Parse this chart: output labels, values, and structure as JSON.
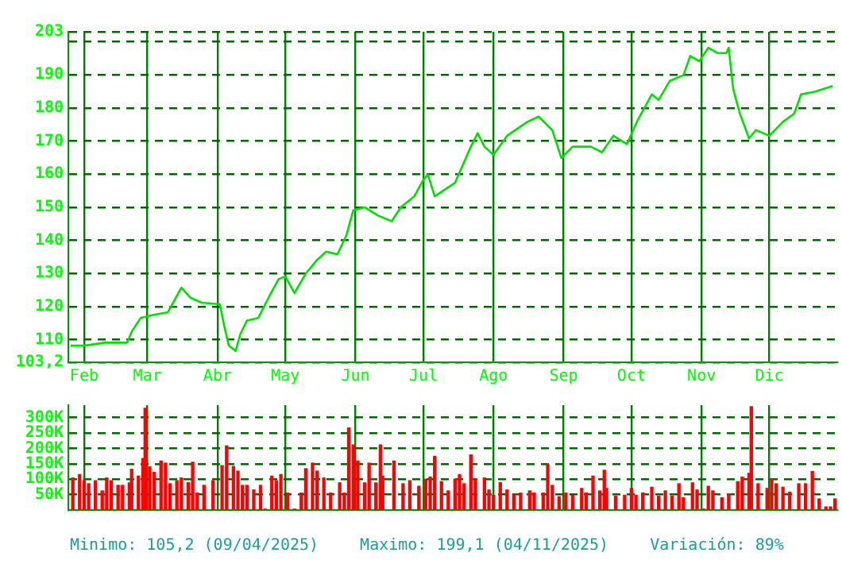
{
  "chart_data": [
    {
      "type": "line",
      "xlim": [
        "--01-25",
        "--12-31"
      ],
      "xticks": [
        {
          "value": "--02-01",
          "label": "Feb"
        },
        {
          "value": "--03-01",
          "label": "Mar"
        },
        {
          "value": "--04-01",
          "label": "Abr"
        },
        {
          "value": "--05-01",
          "label": "May"
        },
        {
          "value": "--06-01",
          "label": "Jun"
        },
        {
          "value": "--07-01",
          "label": "Jul"
        },
        {
          "value": "--08-01",
          "label": "Ago"
        },
        {
          "value": "--09-01",
          "label": "Sep"
        },
        {
          "value": "--10-01",
          "label": "Oct"
        },
        {
          "value": "--11-01",
          "label": "Nov"
        },
        {
          "value": "--12-01",
          "label": "Dic"
        }
      ],
      "ylim": [
        103.2,
        203
      ],
      "yticks": [
        {
          "value": 103.2,
          "label": "103,2"
        },
        110,
        120,
        130,
        140,
        150,
        160,
        170,
        180,
        190,
        {
          "value": 200,
          "label": null
        },
        203
      ],
      "grid": true,
      "series": [
        {
          "color": "#00e000",
          "x": [
            "--01-26",
            "--02-01",
            "--02-10",
            "--02-20",
            "--02-22",
            "--02-26",
            "--03-03",
            "--03-10",
            "--03-16",
            "--03-20",
            "--03-25",
            "--04-02",
            "--04-04",
            "--04-06",
            "--04-09",
            "--04-11",
            "--04-14",
            "--04-19",
            "--04-24",
            "--04-28",
            "--05-01",
            "--05-05",
            "--05-10",
            "--05-15",
            "--05-19",
            "--05-24",
            "--05-28",
            "--05-31",
            "--06-05",
            "--06-11",
            "--06-17",
            "--06-21",
            "--06-27",
            "--07-01",
            "--07-03",
            "--07-06",
            "--07-15",
            "--07-22",
            "--07-25",
            "--07-28",
            "--08-01",
            "--08-07",
            "--08-16",
            "--08-21",
            "--08-27",
            "--08-31",
            "--09-05",
            "--09-13",
            "--09-18",
            "--09-23",
            "--09-29",
            "--10-04",
            "--10-10",
            "--10-13",
            "--10-18",
            "--10-24",
            "--10-27",
            "--10-31",
            "--11-04",
            "--11-08",
            "--11-12",
            "--11-13",
            "--11-15",
            "--11-18",
            "--11-22",
            "--11-25",
            "--12-01",
            "--12-07",
            "--12-12",
            "--12-15",
            "--12-21",
            "--12-29"
          ],
          "values": [
            108.2,
            108.2,
            109.1,
            109.1,
            112.4,
            116.6,
            117.4,
            118.3,
            125.7,
            122.7,
            121.2,
            120.7,
            114,
            108.2,
            106.6,
            111.6,
            115.8,
            116.6,
            123.3,
            128.3,
            129.1,
            124.1,
            130,
            134.1,
            136.6,
            135.8,
            141.6,
            149.1,
            150,
            147.5,
            145.8,
            150,
            153.3,
            158.3,
            159.9,
            153.3,
            157.4,
            168.3,
            172.4,
            168.3,
            165.8,
            171.6,
            175.8,
            177.4,
            173.3,
            164.9,
            168.3,
            168.3,
            166.6,
            171.6,
            169.1,
            176.6,
            184.1,
            182.4,
            188.2,
            189.9,
            195.7,
            194.1,
            198.2,
            196.6,
            196.6,
            198.2,
            185.7,
            178.2,
            170.8,
            173.3,
            171.6,
            175.8,
            178.3,
            184.1,
            184.9,
            186.6
          ]
        }
      ]
    },
    {
      "type": "bar",
      "xlim": [
        "--01-25",
        "--12-31"
      ],
      "xticks": [
        {
          "value": "--02-01",
          "label": null
        },
        {
          "value": "--03-01",
          "label": null
        },
        {
          "value": "--04-01",
          "label": null
        },
        {
          "value": "--05-01",
          "label": null
        },
        {
          "value": "--06-01",
          "label": null
        },
        {
          "value": "--07-01",
          "label": null
        },
        {
          "value": "--08-01",
          "label": null
        },
        {
          "value": "--09-01",
          "label": null
        },
        {
          "value": "--10-01",
          "label": null
        },
        {
          "value": "--11-01",
          "label": null
        },
        {
          "value": "--12-01",
          "label": null
        }
      ],
      "ylim": [
        0,
        340000
      ],
      "yticks": [
        {
          "value": 50000,
          "label": "50K"
        },
        {
          "value": 100000,
          "label": "100K"
        },
        {
          "value": 150000,
          "label": "150K"
        },
        {
          "value": 200000,
          "label": "200K"
        },
        {
          "value": 250000,
          "label": "250K"
        },
        {
          "value": 300000,
          "label": "300K"
        }
      ],
      "grid": true,
      "tick_labels": "y",
      "series": [
        {
          "color": "#ff0000",
          "x": [
            "--01-27",
            "--01-30",
            "--02-01",
            "--02-03",
            "--02-06",
            "--02-09",
            "--02-11",
            "--02-13",
            "--02-16",
            "--02-18",
            "--02-21",
            "--02-22",
            "--02-25",
            "--02-27",
            "--02-28",
            "--03-02",
            "--03-04",
            "--03-07",
            "--03-09",
            "--03-11",
            "--03-14",
            "--03-16",
            "--03-19",
            "--03-21",
            "--03-23",
            "--03-26",
            "--03-30",
            "--04-03",
            "--04-05",
            "--04-08",
            "--04-10",
            "--04-12",
            "--04-14",
            "--04-17",
            "--04-20",
            "--04-22",
            "--04-25",
            "--04-27",
            "--04-29",
            "--05-02",
            "--05-05",
            "--05-08",
            "--05-10",
            "--05-13",
            "--05-15",
            "--05-18",
            "--05-21",
            "--05-25",
            "--05-27",
            "--05-29",
            "--05-31",
            "--06-02",
            "--06-05",
            "--06-07",
            "--06-10",
            "--06-12",
            "--06-13",
            "--06-18",
            "--06-22",
            "--06-25",
            "--06-29",
            "--07-02",
            "--07-04",
            "--07-06",
            "--07-09",
            "--07-12",
            "--07-15",
            "--07-17",
            "--07-19",
            "--07-22",
            "--07-24",
            "--07-28",
            "--07-30",
            "--08-01",
            "--08-04",
            "--08-07",
            "--08-10",
            "--08-13",
            "--08-17",
            "--08-19",
            "--08-23",
            "--08-25",
            "--08-27",
            "--08-30",
            "--09-02",
            "--09-05",
            "--09-09",
            "--09-11",
            "--09-14",
            "--09-17",
            "--09-19",
            "--09-20",
            "--09-24",
            "--09-28",
            "--10-01",
            "--10-03",
            "--10-06",
            "--10-10",
            "--10-13",
            "--10-16",
            "--10-19",
            "--10-22",
            "--10-24",
            "--10-28",
            "--10-30",
            "--11-02",
            "--11-04",
            "--11-06",
            "--11-10",
            "--11-13",
            "--11-17",
            "--11-19",
            "--11-22",
            "--11-23",
            "--11-26",
            "--11-30",
            "--12-02",
            "--12-04",
            "--12-07",
            "--12-10",
            "--12-14",
            "--12-17",
            "--12-20",
            "--12-23",
            "--12-26",
            "--12-28",
            "--12-30"
          ],
          "values": [
            104000,
            115000,
            95000,
            85000,
            95000,
            62000,
            104000,
            95000,
            80000,
            80000,
            88000,
            132000,
            110000,
            167000,
            330000,
            140000,
            122000,
            159000,
            152000,
            85000,
            95000,
            104000,
            89000,
            155000,
            55000,
            80000,
            95000,
            144000,
            208000,
            141000,
            126000,
            80000,
            80000,
            65000,
            80000,
            3000,
            110000,
            95000,
            115000,
            55000,
            3000,
            55000,
            134000,
            152000,
            126000,
            104000,
            55000,
            88000,
            55000,
            266000,
            211000,
            159000,
            88000,
            152000,
            88000,
            211000,
            110000,
            159000,
            85000,
            95000,
            77000,
            100000,
            107000,
            174000,
            92000,
            62000,
            100000,
            115000,
            85000,
            179000,
            100000,
            104000,
            65000,
            48000,
            89000,
            65000,
            51000,
            55000,
            62000,
            55000,
            55000,
            147000,
            80000,
            43000,
            55000,
            48000,
            70000,
            55000,
            110000,
            62000,
            129000,
            70000,
            45000,
            48000,
            70000,
            48000,
            55000,
            74000,
            45000,
            62000,
            45000,
            85000,
            40000,
            88000,
            65000,
            3000,
            77000,
            62000,
            40000,
            52000,
            92000,
            107000,
            119000,
            335000,
            85000,
            70000,
            100000,
            85000,
            74000,
            58000,
            85000,
            85000,
            125000,
            36000,
            10000,
            10000,
            36000
          ]
        }
      ],
      "annotations": [
        "Minimo: 105,2 (09/04/2025)",
        "Maximo: 199,1 (04/11/2025)",
        "Variación: 89%"
      ]
    }
  ]
}
